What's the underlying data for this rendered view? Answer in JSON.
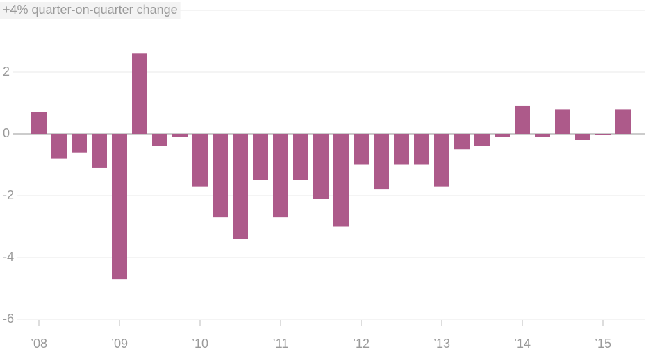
{
  "chart_data": {
    "type": "bar",
    "categories": [
      "’08",
      null,
      null,
      null,
      "’09",
      null,
      null,
      null,
      "’10",
      null,
      null,
      null,
      "’11",
      null,
      null,
      null,
      "’12",
      null,
      null,
      null,
      "’13",
      null,
      null,
      null,
      "’14",
      null,
      null,
      null,
      "’15",
      null
    ],
    "values": [
      0.7,
      -0.8,
      -0.6,
      -1.1,
      -4.7,
      2.6,
      -0.4,
      -0.1,
      -1.7,
      -2.7,
      -3.4,
      -1.5,
      -2.7,
      -1.5,
      -2.1,
      -3.0,
      -1.0,
      -1.8,
      -1.0,
      -1.0,
      -1.7,
      -0.5,
      -0.4,
      -0.1,
      0.9,
      -0.1,
      0.8,
      -0.2,
      0.0,
      0.8
    ],
    "color": "#ad5a8a",
    "ylim": [
      -6,
      4
    ],
    "yticks": [
      {
        "value": 4,
        "label": "+4% quarter-on-quarter change"
      },
      2,
      0,
      -2,
      -4,
      -6
    ],
    "grid": true
  }
}
